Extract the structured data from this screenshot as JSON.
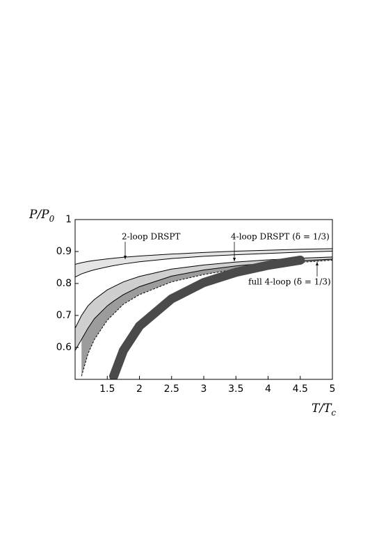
{
  "chart_data": {
    "type": "band",
    "xlabel": {
      "main": "T/T",
      "sub": "c"
    },
    "ylabel": {
      "main": "P/P",
      "sub": "0"
    },
    "xlim": [
      1,
      5
    ],
    "ylim": [
      0.5,
      1
    ],
    "xticks": [
      1.5,
      2,
      2.5,
      3,
      3.5,
      4,
      4.5,
      5
    ],
    "yticks": [
      0.6,
      0.7,
      0.8,
      0.9,
      1
    ],
    "x": [
      1.0,
      1.1,
      1.2,
      1.3,
      1.5,
      1.6,
      1.75,
      2,
      2.5,
      3,
      3.5,
      4,
      4.5,
      5
    ],
    "curves": [
      {
        "color": "#000000",
        "fill": "#e4e4e4",
        "values": [
          0.86,
          0.865,
          0.869,
          0.872,
          0.877,
          0.879,
          0.882,
          0.886,
          0.892,
          0.897,
          0.901,
          0.904,
          0.907,
          0.909
        ]
      },
      {
        "color": "#000000",
        "values": [
          0.82,
          0.83,
          0.837,
          0.843,
          0.852,
          0.856,
          0.861,
          0.868,
          0.878,
          0.885,
          0.89,
          0.894,
          0.898,
          0.901
        ]
      },
      {
        "color": "#000000",
        "fill": "#cfcfcf",
        "values": [
          0.66,
          0.7,
          0.73,
          0.75,
          0.78,
          0.79,
          0.805,
          0.822,
          0.845,
          0.858,
          0.867,
          0.874,
          0.879,
          0.883
        ]
      },
      {
        "color": "#000000",
        "fill": "#9c9c9c",
        "values": [
          0.59,
          0.625,
          0.66,
          0.69,
          0.73,
          0.745,
          0.765,
          0.79,
          0.823,
          0.842,
          0.855,
          0.864,
          0.871,
          0.876
        ]
      },
      {
        "color": "#000000",
        "style": "dashed",
        "values": [
          null,
          0.51,
          0.58,
          0.625,
          0.685,
          0.705,
          0.735,
          0.765,
          0.805,
          0.828,
          0.845,
          0.857,
          0.866,
          0.873
        ]
      },
      {
        "color": "#4a4a4a",
        "style": "thick",
        "values": [
          null,
          null,
          null,
          null,
          null,
          0.51,
          0.59,
          0.667,
          0.752,
          0.803,
          0.835,
          0.857,
          0.873,
          null
        ]
      }
    ],
    "annotations": [
      "2-loop DRSPT",
      "4-loop DRSPT (δ = 1/3)",
      "full 4-loop (δ = 1/3)"
    ]
  }
}
